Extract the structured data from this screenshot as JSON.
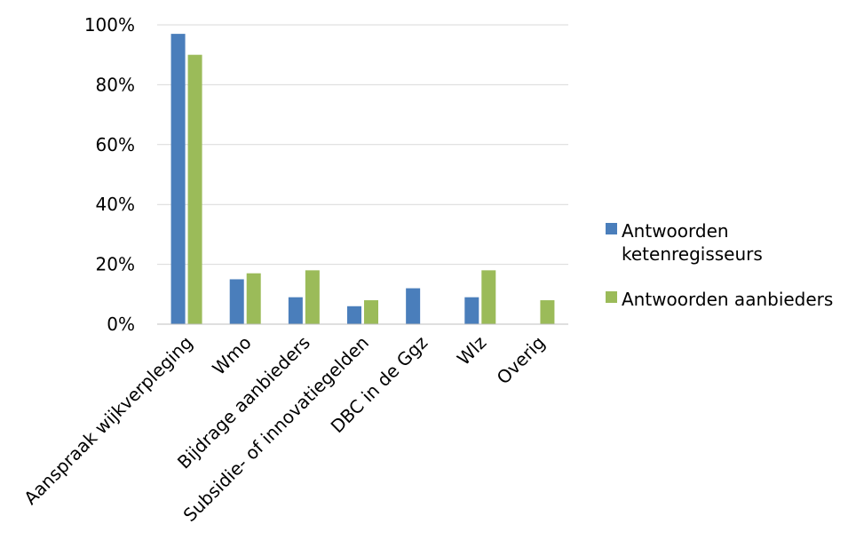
{
  "chart_data": {
    "type": "bar",
    "categories": [
      "Aanspraak wijkverpleging",
      "Wmo",
      "Bijdrage aanbieders",
      "Subsidie- of innovatiegelden",
      "DBC in de Ggz",
      "Wlz",
      "Overig"
    ],
    "series": [
      {
        "name": "Antwoorden ketenregisseurs",
        "legend_lines": [
          "Antwoorden",
          "ketenregisseurs"
        ],
        "color": "#4a7ebb",
        "values": [
          97,
          15,
          9,
          6,
          12,
          9,
          0
        ]
      },
      {
        "name": "Antwoorden aanbieders",
        "legend_lines": [
          "Antwoorden aanbieders"
        ],
        "color": "#9bbb59",
        "values": [
          90,
          17,
          18,
          8,
          0,
          18,
          8
        ]
      }
    ],
    "y_ticks": [
      "0%",
      "20%",
      "40%",
      "60%",
      "80%",
      "100%"
    ],
    "ylim": [
      0,
      100
    ],
    "grid": true,
    "legend_position": "right",
    "gridline_color": "#d9d9d9",
    "axis_color": "#bfbfbf"
  }
}
